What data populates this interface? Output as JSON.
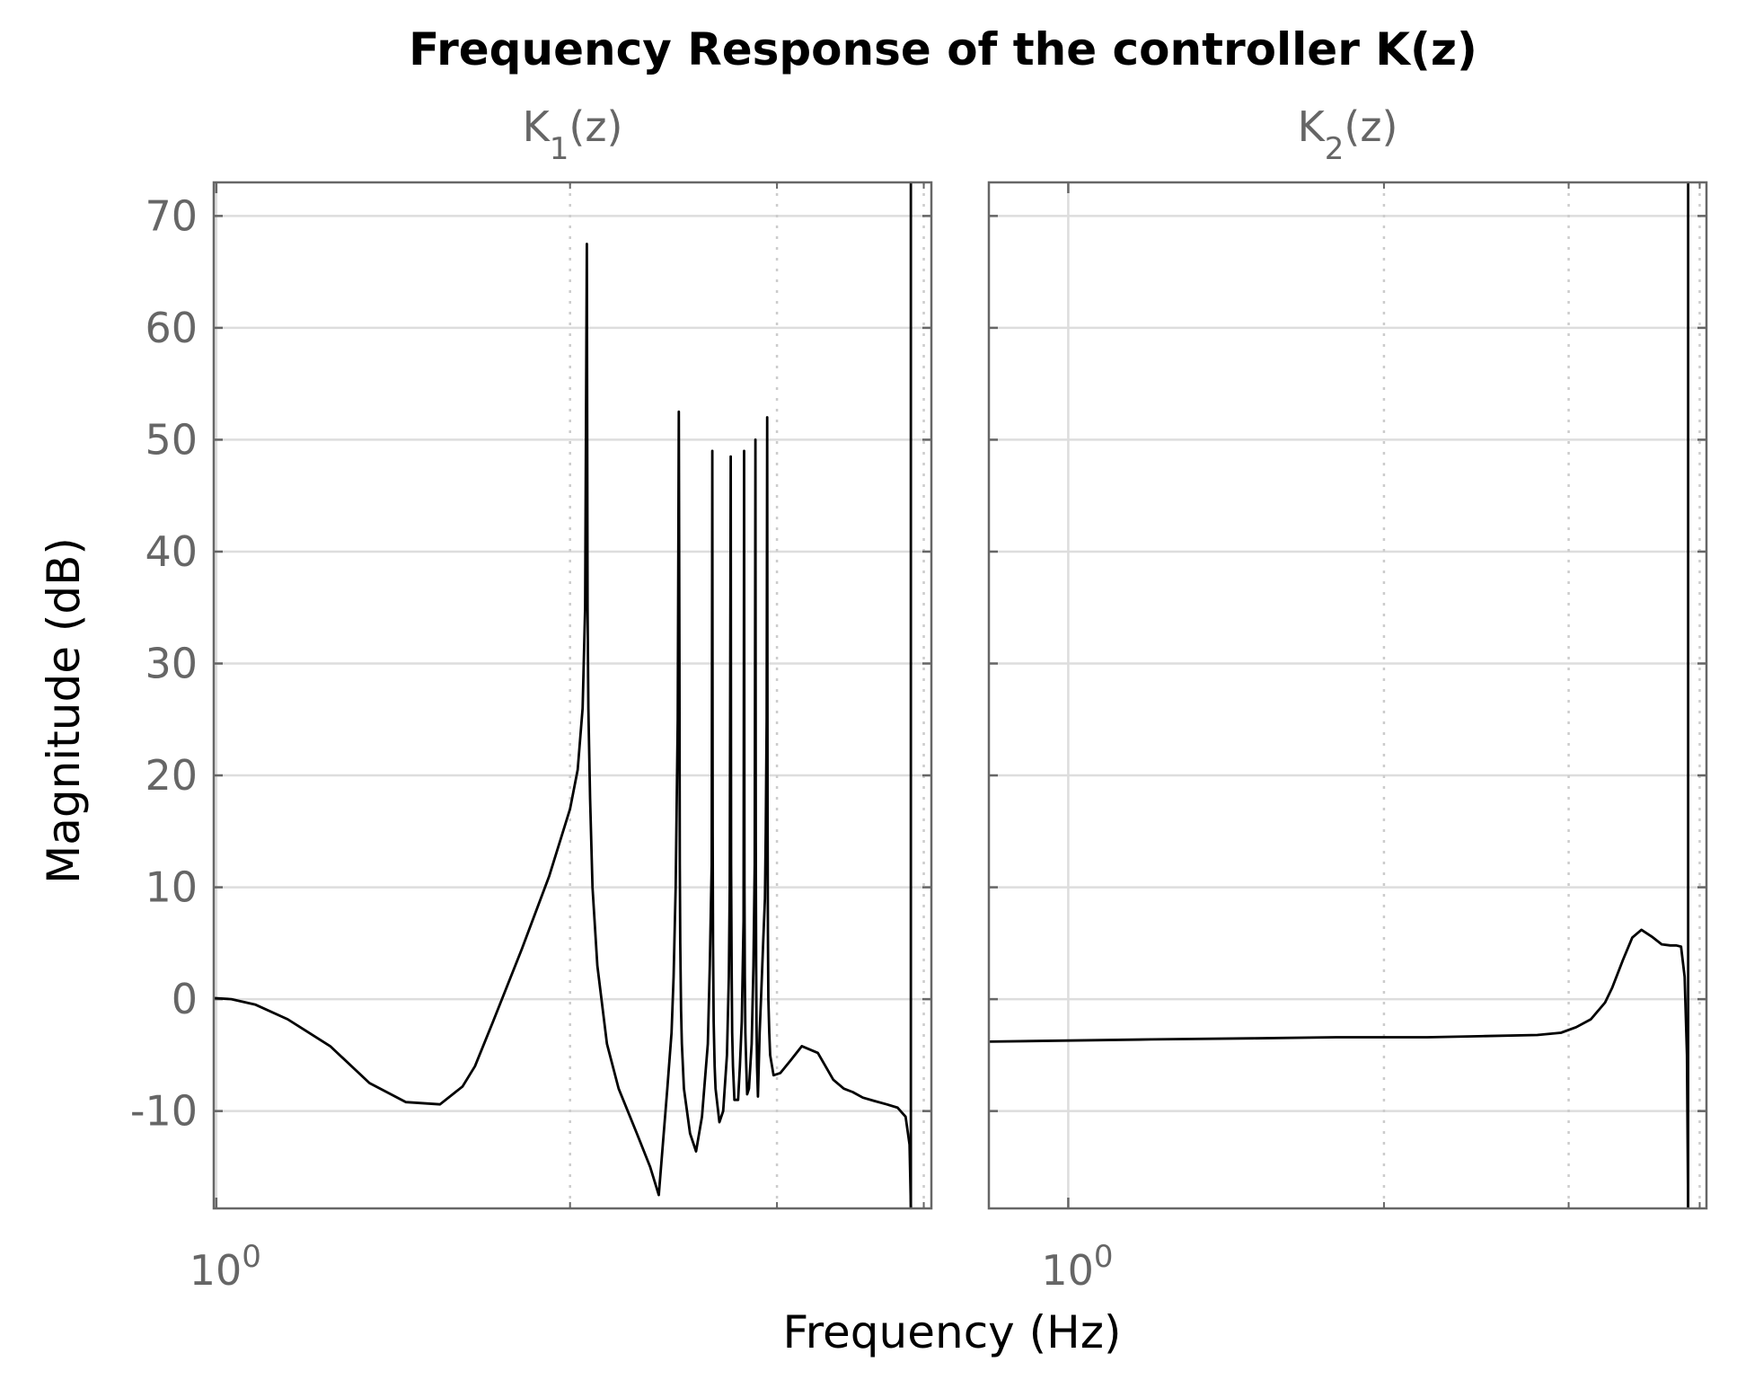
{
  "chart_data": {
    "type": "line",
    "title": "Frequency Response of the controller K(z)",
    "xlabel": "Frequency  (Hz)",
    "ylabel": "Magnitude (dB)",
    "x_scale": "log",
    "grid": true,
    "colors": {
      "line": "#000000",
      "axis": "#666666",
      "grid": "#dddddd",
      "tick_text": "#666666",
      "text": "#000000"
    },
    "panels": [
      {
        "subtitle": "K",
        "subtitle_sub": "1",
        "subtitle_tail": "(z)",
        "xlim": [
          0.995,
          4.06
        ],
        "ylim": [
          -18.7,
          73
        ],
        "yticks": [
          70,
          60,
          50,
          40,
          30,
          20,
          10,
          0,
          -10
        ],
        "ytick_labels": [
          "70",
          "60",
          "50",
          "40",
          "30",
          "20",
          "10",
          "0",
          "-10"
        ],
        "xtick_major": 1,
        "xtick_label_base": "10",
        "xtick_label_exp": "0",
        "xgrid_minor": [
          2,
          3,
          4
        ],
        "nyquist_x": 3.9,
        "series": {
          "x": [
            0.995,
            1.03,
            1.08,
            1.15,
            1.25,
            1.35,
            1.45,
            1.55,
            1.62,
            1.66,
            1.72,
            1.82,
            1.92,
            2.0,
            2.03,
            2.05,
            2.06,
            2.067,
            2.07,
            2.073,
            2.08,
            2.09,
            2.11,
            2.15,
            2.2,
            2.28,
            2.34,
            2.38,
            2.42,
            2.44,
            2.45,
            2.46,
            2.47,
            2.475,
            2.478,
            2.48,
            2.482,
            2.486,
            2.49,
            2.5,
            2.53,
            2.56,
            2.59,
            2.62,
            2.63,
            2.64,
            2.643,
            2.645,
            2.647,
            2.65,
            2.655,
            2.66,
            2.68,
            2.7,
            2.72,
            2.73,
            2.735,
            2.74,
            2.742,
            2.745,
            2.748,
            2.752,
            2.76,
            2.78,
            2.79,
            2.8,
            2.81,
            2.813,
            2.815,
            2.817,
            2.82,
            2.825,
            2.83,
            2.84,
            2.855,
            2.865,
            2.872,
            2.876,
            2.878,
            2.88,
            2.882,
            2.885,
            2.89,
            2.9,
            2.91,
            2.92,
            2.93,
            2.935,
            2.94,
            2.943,
            2.945,
            2.947,
            2.95,
            2.955,
            2.96,
            2.98,
            3.02,
            3.08,
            3.15,
            3.25,
            3.35,
            3.42,
            3.48,
            3.55,
            3.63,
            3.72,
            3.8,
            3.86,
            3.89,
            3.9
          ],
          "y": [
            0.1,
            0.0,
            -0.5,
            -1.8,
            -4.2,
            -7.5,
            -9.2,
            -9.4,
            -7.8,
            -6.0,
            -2.0,
            4.5,
            11.0,
            17.0,
            20.5,
            26.0,
            35.0,
            67.5,
            35.0,
            26.0,
            18.0,
            10.0,
            3.0,
            -4.0,
            -8.0,
            -12.0,
            -15.0,
            -17.5,
            -8.0,
            -3.0,
            2.0,
            10.0,
            25.0,
            52.5,
            30.0,
            12.0,
            5.0,
            -1.0,
            -4.0,
            -8.0,
            -12.0,
            -13.6,
            -10.5,
            -4.0,
            3.0,
            12.0,
            49.0,
            15.0,
            5.0,
            -2.0,
            -6.0,
            -8.0,
            -11.0,
            -10.0,
            -5.0,
            2.0,
            10.0,
            48.5,
            12.0,
            3.0,
            -3.0,
            -6.0,
            -9.0,
            -9.0,
            -6.0,
            -2.0,
            7.0,
            49.0,
            10.0,
            2.0,
            -3.0,
            -6.0,
            -8.5,
            -8.0,
            -4.0,
            3.0,
            12.0,
            50.0,
            14.0,
            3.0,
            -2.0,
            -6.0,
            -8.7,
            -3.0,
            1.0,
            5.0,
            9.0,
            15.0,
            25.0,
            52.0,
            18.0,
            6.0,
            0.0,
            -3.0,
            -5.0,
            -6.8,
            -6.6,
            -5.5,
            -4.2,
            -4.8,
            -7.2,
            -8.0,
            -8.3,
            -8.8,
            -9.1,
            -9.4,
            -9.7,
            -10.5,
            -13.0,
            -18.7
          ]
        }
      },
      {
        "subtitle": "K",
        "subtitle_sub": "2",
        "subtitle_tail": "(z)",
        "xlim": [
          0.84,
          4.06
        ],
        "ylim": [
          -18.7,
          73
        ],
        "yticks": [
          70,
          60,
          50,
          40,
          30,
          20,
          10,
          0,
          -10
        ],
        "xtick_major": 1,
        "xtick_label_base": "10",
        "xtick_label_exp": "0",
        "xgrid_minor": [
          2,
          3,
          4
        ],
        "nyquist_x": 3.9,
        "series": {
          "x": [
            0.84,
            1.0,
            1.2,
            1.5,
            1.8,
            2.2,
            2.5,
            2.8,
            2.95,
            3.05,
            3.15,
            3.25,
            3.3,
            3.38,
            3.45,
            3.52,
            3.6,
            3.68,
            3.75,
            3.8,
            3.84,
            3.87,
            3.89,
            3.9
          ],
          "y": [
            -3.8,
            -3.7,
            -3.6,
            -3.5,
            -3.4,
            -3.4,
            -3.3,
            -3.2,
            -3.0,
            -2.5,
            -1.8,
            -0.3,
            1.0,
            3.5,
            5.5,
            6.2,
            5.6,
            4.9,
            4.8,
            4.8,
            4.7,
            2.0,
            -5.0,
            -18.7
          ]
        }
      }
    ]
  }
}
